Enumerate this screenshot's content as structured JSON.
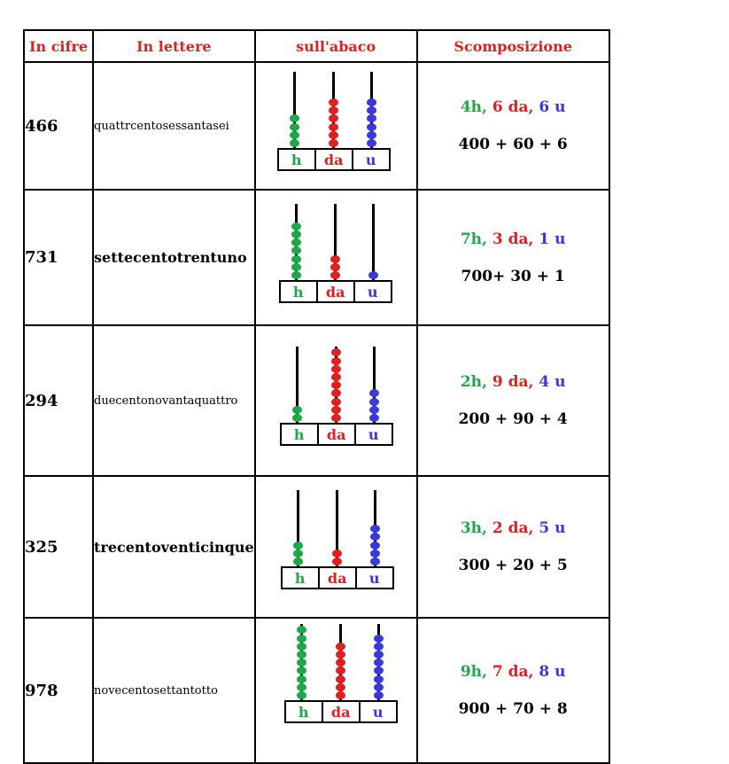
{
  "headers": {
    "cifre": "In cifre",
    "lettere": "In lettere",
    "abaco": "sull'abaco",
    "scomposizione": "Scomposizione"
  },
  "colors": {
    "h": "#1fa84a",
    "da": "#e02020",
    "u": "#3a3adc"
  },
  "abacus_labels": {
    "h": "h",
    "da": "da",
    "u": "u"
  },
  "rows": [
    {
      "cifre": "466",
      "lettere": "quattrcentosessantasei",
      "h": 4,
      "da": 6,
      "u": 6,
      "dec_h": "4h,",
      "dec_da": "6 da,",
      "dec_u": "6 u",
      "sum": "400 + 60 + 6"
    },
    {
      "cifre": "731",
      "lettere": "settecentotrentuno",
      "h": 7,
      "da": 3,
      "u": 1,
      "dec_h": "7h,",
      "dec_da": "3 da,",
      "dec_u": "1 u",
      "sum": "700+ 30 + 1"
    },
    {
      "cifre": "294",
      "lettere": "duecentonovantaquattro",
      "h": 2,
      "da": 9,
      "u": 4,
      "dec_h": "2h,",
      "dec_da": "9 da,",
      "dec_u": "4 u",
      "sum": "200 + 90 + 4"
    },
    {
      "cifre": "325",
      "lettere": "trecentoventicinque",
      "h": 3,
      "da": 2,
      "u": 5,
      "dec_h": "3h,",
      "dec_da": "2 da,",
      "dec_u": "5 u",
      "sum": "300 + 20 + 5"
    },
    {
      "cifre": "978",
      "lettere": "novecentosettantotto",
      "h": 9,
      "da": 7,
      "u": 8,
      "dec_h": "9h,",
      "dec_da": "7 da,",
      "dec_u": "8 u",
      "sum": "900 + 70 + 8"
    }
  ]
}
